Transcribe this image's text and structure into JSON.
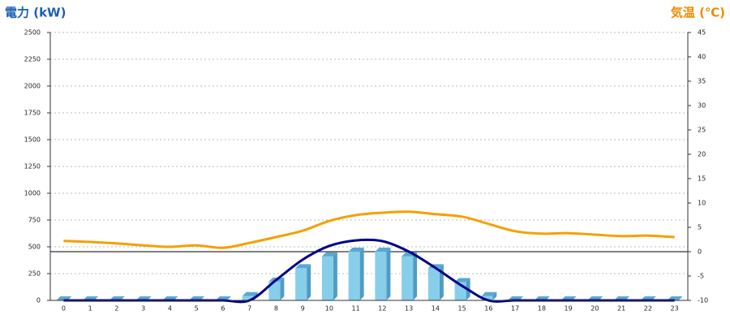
{
  "chart_data": {
    "type": "bar",
    "y_label": "電力 (kW)",
    "y2_label": "気温 (℃)",
    "categories": [
      "0",
      "1",
      "2",
      "3",
      "4",
      "5",
      "6",
      "7",
      "8",
      "9",
      "10",
      "11",
      "12",
      "13",
      "14",
      "15",
      "16",
      "17",
      "18",
      "19",
      "20",
      "21",
      "22",
      "23"
    ],
    "series": [
      {
        "type": "bar",
        "color": "#87ceeb",
        "values": [
          0,
          0,
          0,
          0,
          0,
          0,
          0,
          40,
          175,
          300,
          410,
          455,
          455,
          410,
          300,
          170,
          40,
          0,
          0,
          0,
          0,
          0,
          0,
          0
        ]
      },
      {
        "type": "line",
        "color": "#00008b",
        "values": [
          0,
          0,
          0,
          0,
          0,
          0,
          0,
          0,
          190,
          380,
          508,
          560,
          553,
          455,
          303,
          136,
          0,
          0,
          0,
          0,
          0,
          0,
          0,
          0
        ]
      },
      {
        "type": "line",
        "color": "#f5a000",
        "axis": "y2",
        "values": [
          2.2,
          2.0,
          1.7,
          1.3,
          1.0,
          1.3,
          0.8,
          1.8,
          3.0,
          4.3,
          6.3,
          7.5,
          8.0,
          8.2,
          7.7,
          7.2,
          5.7,
          4.2,
          3.7,
          3.8,
          3.5,
          3.2,
          3.3,
          3.0
        ]
      }
    ],
    "ylim": [
      0,
      2500
    ],
    "yticks": [
      0,
      250,
      500,
      750,
      1000,
      1250,
      1500,
      1750,
      2000,
      2250,
      2500
    ],
    "y2lim": [
      -10,
      45
    ],
    "y2ticks": [
      -10,
      -5,
      0,
      5,
      10,
      15,
      20,
      25,
      30,
      35,
      40,
      45
    ],
    "grid": true,
    "y2_zero_line": true
  }
}
